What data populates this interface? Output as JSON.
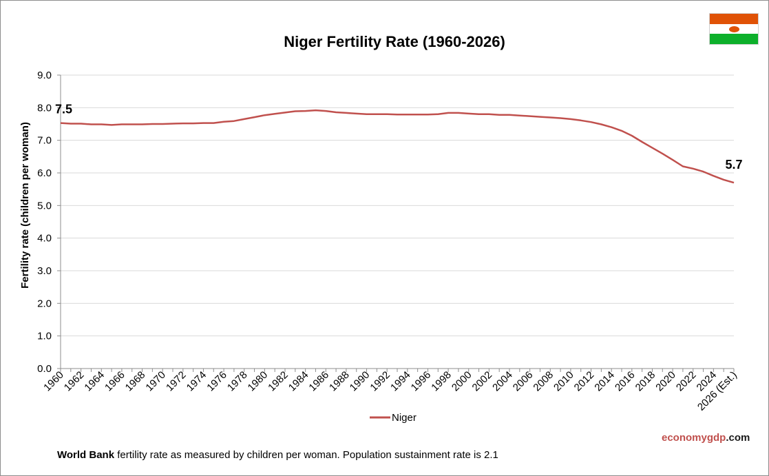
{
  "chart_data": {
    "type": "line",
    "title": "Niger Fertility Rate (1960-2026)",
    "ylabel": "Fertility rate (children per woman)",
    "xlabel": "",
    "ylim": [
      0,
      9
    ],
    "yticks": [
      0,
      1,
      2,
      3,
      4,
      5,
      6,
      7,
      8,
      9
    ],
    "ytick_labels": [
      "0.0",
      "1.0",
      "2.0",
      "3.0",
      "4.0",
      "5.0",
      "6.0",
      "7.0",
      "8.0",
      "9.0"
    ],
    "grid": true,
    "legend_position": "bottom-center",
    "x_tick_labels": [
      "1960",
      "1962",
      "1964",
      "1966",
      "1968",
      "1970",
      "1972",
      "1974",
      "1976",
      "1978",
      "1980",
      "1982",
      "1984",
      "1986",
      "1988",
      "1990",
      "1992",
      "1994",
      "1996",
      "1998",
      "2000",
      "2002",
      "2004",
      "2006",
      "2008",
      "2010",
      "2012",
      "2014",
      "2016",
      "2018",
      "2020",
      "2022",
      "2024",
      "2026 (Est.)"
    ],
    "x": [
      1960,
      1961,
      1962,
      1963,
      1964,
      1965,
      1966,
      1967,
      1968,
      1969,
      1970,
      1971,
      1972,
      1973,
      1974,
      1975,
      1976,
      1977,
      1978,
      1979,
      1980,
      1981,
      1982,
      1983,
      1984,
      1985,
      1986,
      1987,
      1988,
      1989,
      1990,
      1991,
      1992,
      1993,
      1994,
      1995,
      1996,
      1997,
      1998,
      1999,
      2000,
      2001,
      2002,
      2003,
      2004,
      2005,
      2006,
      2007,
      2008,
      2009,
      2010,
      2011,
      2012,
      2013,
      2014,
      2015,
      2016,
      2017,
      2018,
      2019,
      2020,
      2021,
      2022,
      2023,
      2024,
      2025,
      2026
    ],
    "series": [
      {
        "name": "Niger",
        "color": "#c0504d",
        "values": [
          7.53,
          7.51,
          7.51,
          7.49,
          7.49,
          7.47,
          7.49,
          7.49,
          7.49,
          7.5,
          7.5,
          7.51,
          7.52,
          7.52,
          7.53,
          7.53,
          7.57,
          7.59,
          7.65,
          7.71,
          7.77,
          7.81,
          7.85,
          7.89,
          7.9,
          7.92,
          7.9,
          7.86,
          7.84,
          7.82,
          7.8,
          7.8,
          7.8,
          7.79,
          7.79,
          7.79,
          7.79,
          7.8,
          7.84,
          7.84,
          7.82,
          7.8,
          7.8,
          7.78,
          7.78,
          7.76,
          7.74,
          7.72,
          7.7,
          7.68,
          7.65,
          7.61,
          7.56,
          7.49,
          7.4,
          7.29,
          7.14,
          6.95,
          6.77,
          6.59,
          6.4,
          6.2,
          6.13,
          6.04,
          5.91,
          5.79,
          5.7
        ]
      }
    ],
    "data_labels": [
      {
        "x": 1960,
        "text": "7.5"
      },
      {
        "x": 2026,
        "text": "5.7"
      }
    ]
  },
  "brand": {
    "part1": "economygdp",
    "part2": ".com"
  },
  "footnote": {
    "bold": "World Bank",
    "text": " fertility rate as measured by children per woman.  Population  sustainment  rate is 2.1"
  },
  "flag": {
    "colors": [
      "#e05206",
      "#ffffff",
      "#0db02b"
    ],
    "emblem": "#e05206"
  }
}
